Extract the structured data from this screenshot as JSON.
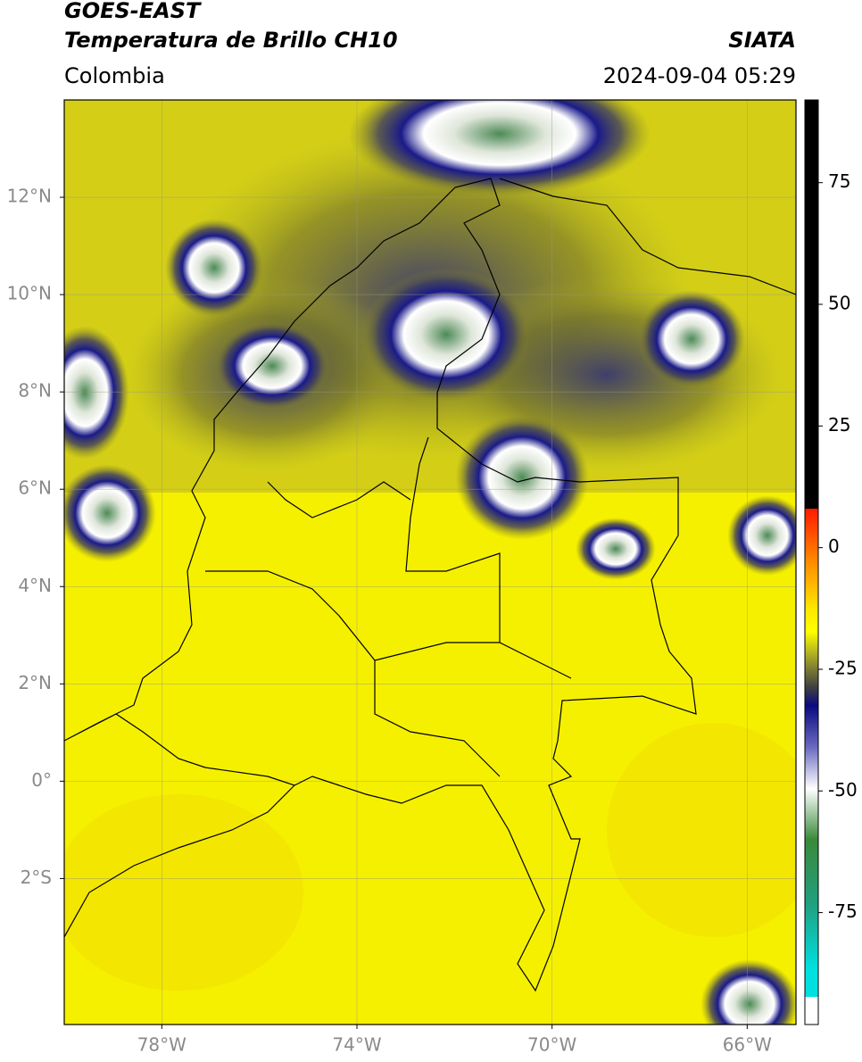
{
  "header": {
    "satellite": "GOES-EAST",
    "product": "Temperatura de Brillo CH10",
    "region": "Colombia",
    "source": "SIATA",
    "datetime": "2024-09-04 05:29"
  },
  "map": {
    "lon_range": [
      -80,
      -65
    ],
    "lat_range": [
      -5,
      14
    ],
    "lon_ticks": [
      {
        "value": -78,
        "label": "78°W"
      },
      {
        "value": -74,
        "label": "74°W"
      },
      {
        "value": -70,
        "label": "70°W"
      },
      {
        "value": -66,
        "label": "66°W"
      }
    ],
    "lat_ticks": [
      {
        "value": 12,
        "label": "12°N"
      },
      {
        "value": 10,
        "label": "10°N"
      },
      {
        "value": 8,
        "label": "8°N"
      },
      {
        "value": 6,
        "label": "6°N"
      },
      {
        "value": 4,
        "label": "4°N"
      },
      {
        "value": 2,
        "label": "2°N"
      },
      {
        "value": 0,
        "label": "0°"
      },
      {
        "value": -2,
        "label": "2°S"
      }
    ]
  },
  "colorbar": {
    "range": [
      -98,
      92
    ],
    "ticks": [
      75,
      50,
      25,
      0,
      -25,
      -50,
      -75
    ]
  }
}
